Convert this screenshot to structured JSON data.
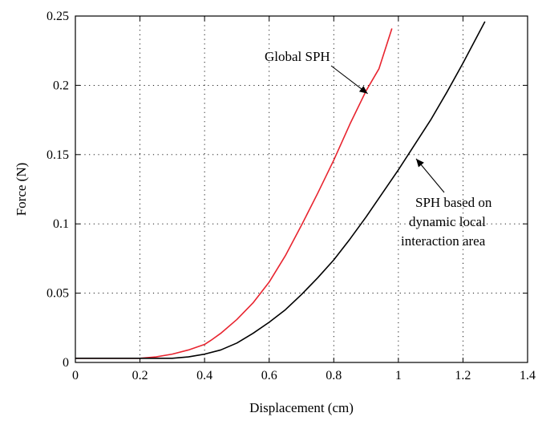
{
  "chart_data": {
    "type": "line",
    "title": "",
    "xlabel": "Displacement (cm)",
    "ylabel": "Force (N)",
    "xlim": [
      0,
      1.4
    ],
    "ylim": [
      0,
      0.25
    ],
    "x_ticks": [
      "0",
      "0.2",
      "0.4",
      "0.6",
      "0.8",
      "1",
      "1.2",
      "1.4"
    ],
    "y_ticks": [
      "0",
      "0.05",
      "0.1",
      "0.15",
      "0.2",
      "0.25"
    ],
    "grid": true,
    "grid_style": "dotted",
    "legend": "none",
    "series": [
      {
        "name": "Global SPH",
        "color": "#e8242f",
        "points": [
          [
            0,
            0.003
          ],
          [
            0.2,
            0.003
          ],
          [
            0.25,
            0.004
          ],
          [
            0.3,
            0.006
          ],
          [
            0.35,
            0.009
          ],
          [
            0.4,
            0.013
          ],
          [
            0.42,
            0.016
          ],
          [
            0.45,
            0.021
          ],
          [
            0.5,
            0.031
          ],
          [
            0.55,
            0.043
          ],
          [
            0.6,
            0.058
          ],
          [
            0.65,
            0.077
          ],
          [
            0.7,
            0.099
          ],
          [
            0.75,
            0.122
          ],
          [
            0.8,
            0.146
          ],
          [
            0.85,
            0.172
          ],
          [
            0.9,
            0.196
          ],
          [
            0.94,
            0.212
          ],
          [
            0.98,
            0.241
          ]
        ]
      },
      {
        "name": "SPH based on dynamic local interaction area",
        "color": "#000000",
        "points": [
          [
            0,
            0.003
          ],
          [
            0.2,
            0.003
          ],
          [
            0.3,
            0.003
          ],
          [
            0.35,
            0.004
          ],
          [
            0.4,
            0.006
          ],
          [
            0.45,
            0.009
          ],
          [
            0.5,
            0.014
          ],
          [
            0.55,
            0.021
          ],
          [
            0.6,
            0.029
          ],
          [
            0.65,
            0.038
          ],
          [
            0.7,
            0.049
          ],
          [
            0.75,
            0.061
          ],
          [
            0.8,
            0.074
          ],
          [
            0.85,
            0.089
          ],
          [
            0.9,
            0.105
          ],
          [
            0.95,
            0.122
          ],
          [
            1.0,
            0.139
          ],
          [
            1.05,
            0.157
          ],
          [
            1.1,
            0.175
          ],
          [
            1.15,
            0.195
          ],
          [
            1.2,
            0.216
          ],
          [
            1.268,
            0.246
          ]
        ]
      }
    ],
    "annotations": [
      {
        "lines": [
          "Global SPH"
        ],
        "points_to": [
          0.905,
          0.194
        ]
      },
      {
        "lines": [
          "SPH based on",
          "dynamic local",
          "interaction area"
        ],
        "points_to": [
          1.055,
          0.147
        ]
      }
    ]
  }
}
